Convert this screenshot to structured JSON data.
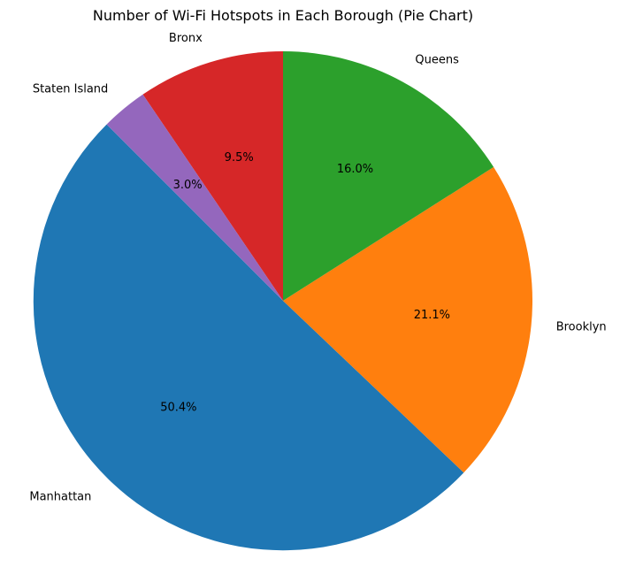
{
  "chart_data": {
    "type": "pie",
    "title": "Number of Wi-Fi Hotspots in Each Borough (Pie Chart)",
    "start_angle_deg": 135,
    "counterclockwise": true,
    "slices": [
      {
        "label": "Manhattan",
        "value": 50.4,
        "pct_label": "50.4%",
        "color": "#1f77b4"
      },
      {
        "label": "Brooklyn",
        "value": 21.1,
        "pct_label": "21.1%",
        "color": "#ff7f0e"
      },
      {
        "label": "Queens",
        "value": 16.0,
        "pct_label": "16.0%",
        "color": "#2ca02c"
      },
      {
        "label": "Bronx",
        "value": 9.5,
        "pct_label": "9.5%",
        "color": "#d62728"
      },
      {
        "label": "Staten Island",
        "value": 3.0,
        "pct_label": "3.0%",
        "color": "#9467bd"
      }
    ]
  }
}
